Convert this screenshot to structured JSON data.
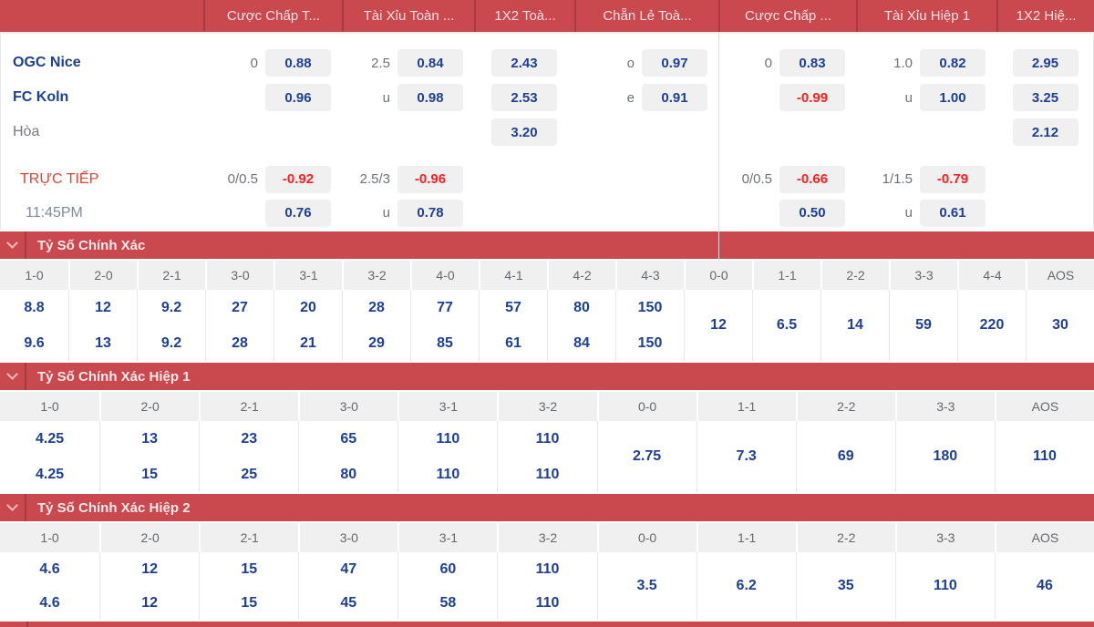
{
  "colors": {
    "accent_red": "#C9494F",
    "accent_red_dark": "#A23A3F",
    "odds_navy": "#1C3F97",
    "negative_odds_red": "#FF1E1E",
    "odds_cell_bg": "#F0F0F0",
    "live_red": "#E34230"
  },
  "icons": {
    "section_collapse": "chevron-down"
  },
  "odds_table": {
    "header_groups": [
      {
        "label": "Cược Chấp T..."
      },
      {
        "label": "Tài Xỉu Toàn ..."
      },
      {
        "label": "1X2 Toà..."
      },
      {
        "label": "Chẵn Lẻ Toà..."
      },
      {
        "label": "Cược Chấp ..."
      },
      {
        "label": "Tài Xỉu Hiệp 1"
      },
      {
        "label": "1X2 Hiệ..."
      }
    ],
    "rows": [
      {
        "name": "OGC Nice",
        "cells": [
          {
            "line": "0",
            "odds": "0.88"
          },
          {
            "line": "2.5",
            "odds": "0.84"
          },
          {
            "line": "",
            "odds": "2.43"
          },
          {
            "line": "o",
            "odds": "0.97"
          },
          {
            "line": "0",
            "odds": "0.83"
          },
          {
            "line": "1.0",
            "odds": "0.82"
          },
          {
            "line": "",
            "odds": "2.95"
          }
        ]
      },
      {
        "name": "FC Koln",
        "cells": [
          {
            "line": "",
            "odds": "0.96"
          },
          {
            "line": "u",
            "odds": "0.98"
          },
          {
            "line": "",
            "odds": "2.53"
          },
          {
            "line": "e",
            "odds": "0.91"
          },
          {
            "line": "",
            "odds": "-0.99"
          },
          {
            "line": "u",
            "odds": "1.00"
          },
          {
            "line": "",
            "odds": "3.25"
          }
        ]
      },
      {
        "name": "Hòa",
        "cells": [
          null,
          null,
          {
            "line": "",
            "odds": "3.20"
          },
          null,
          null,
          null,
          {
            "line": "",
            "odds": "2.12"
          }
        ]
      }
    ],
    "live": {
      "label": "TRỰC TIẾP",
      "time": "11:45PM",
      "rows": [
        [
          {
            "line": "0/0.5",
            "odds": "-0.92"
          },
          {
            "line": "2.5/3",
            "odds": "-0.96"
          },
          null,
          null,
          {
            "line": "0/0.5",
            "odds": "-0.66"
          },
          {
            "line": "1/1.5",
            "odds": "-0.79"
          },
          null
        ],
        [
          {
            "line": "",
            "odds": "0.76"
          },
          {
            "line": "u",
            "odds": "0.78"
          },
          null,
          null,
          {
            "line": "",
            "odds": "0.50"
          },
          {
            "line": "u",
            "odds": "0.61"
          },
          null
        ]
      ]
    }
  },
  "sections": [
    {
      "title": "Tỷ Số Chính Xác",
      "columns": [
        {
          "score": "1-0",
          "values": [
            "8.8",
            "9.6"
          ]
        },
        {
          "score": "2-0",
          "values": [
            "12",
            "13"
          ]
        },
        {
          "score": "2-1",
          "values": [
            "9.2",
            "9.2"
          ]
        },
        {
          "score": "3-0",
          "values": [
            "27",
            "28"
          ]
        },
        {
          "score": "3-1",
          "values": [
            "20",
            "21"
          ]
        },
        {
          "score": "3-2",
          "values": [
            "28",
            "29"
          ]
        },
        {
          "score": "4-0",
          "values": [
            "77",
            "85"
          ]
        },
        {
          "score": "4-1",
          "values": [
            "57",
            "61"
          ]
        },
        {
          "score": "4-2",
          "values": [
            "80",
            "84"
          ]
        },
        {
          "score": "4-3",
          "values": [
            "150",
            "150"
          ]
        },
        {
          "score": "0-0",
          "values": [
            "12"
          ]
        },
        {
          "score": "1-1",
          "values": [
            "6.5"
          ]
        },
        {
          "score": "2-2",
          "values": [
            "14"
          ]
        },
        {
          "score": "3-3",
          "values": [
            "59"
          ]
        },
        {
          "score": "4-4",
          "values": [
            "220"
          ]
        },
        {
          "score": "AOS",
          "values": [
            "30"
          ]
        }
      ]
    },
    {
      "title": "Tỷ Số Chính Xác Hiệp 1",
      "columns": [
        {
          "score": "1-0",
          "values": [
            "4.25",
            "4.25"
          ]
        },
        {
          "score": "2-0",
          "values": [
            "13",
            "15"
          ]
        },
        {
          "score": "2-1",
          "values": [
            "23",
            "25"
          ]
        },
        {
          "score": "3-0",
          "values": [
            "65",
            "80"
          ]
        },
        {
          "score": "3-1",
          "values": [
            "110",
            "110"
          ]
        },
        {
          "score": "3-2",
          "values": [
            "110",
            "110"
          ]
        },
        {
          "score": "0-0",
          "values": [
            "2.75"
          ]
        },
        {
          "score": "1-1",
          "values": [
            "7.3"
          ]
        },
        {
          "score": "2-2",
          "values": [
            "69"
          ]
        },
        {
          "score": "3-3",
          "values": [
            "180"
          ]
        },
        {
          "score": "AOS",
          "values": [
            "110"
          ]
        }
      ]
    },
    {
      "title": "Tỷ Số Chính Xác Hiệp 2",
      "columns": [
        {
          "score": "1-0",
          "values": [
            "4.6",
            "4.6"
          ]
        },
        {
          "score": "2-0",
          "values": [
            "12",
            "12"
          ]
        },
        {
          "score": "2-1",
          "values": [
            "15",
            "15"
          ]
        },
        {
          "score": "3-0",
          "values": [
            "47",
            "45"
          ]
        },
        {
          "score": "3-1",
          "values": [
            "60",
            "58"
          ]
        },
        {
          "score": "3-2",
          "values": [
            "110",
            "110"
          ]
        },
        {
          "score": "0-0",
          "values": [
            "3.5"
          ]
        },
        {
          "score": "1-1",
          "values": [
            "6.2"
          ]
        },
        {
          "score": "2-2",
          "values": [
            "35"
          ]
        },
        {
          "score": "3-3",
          "values": [
            "110"
          ]
        },
        {
          "score": "AOS",
          "values": [
            "46"
          ]
        }
      ]
    }
  ]
}
